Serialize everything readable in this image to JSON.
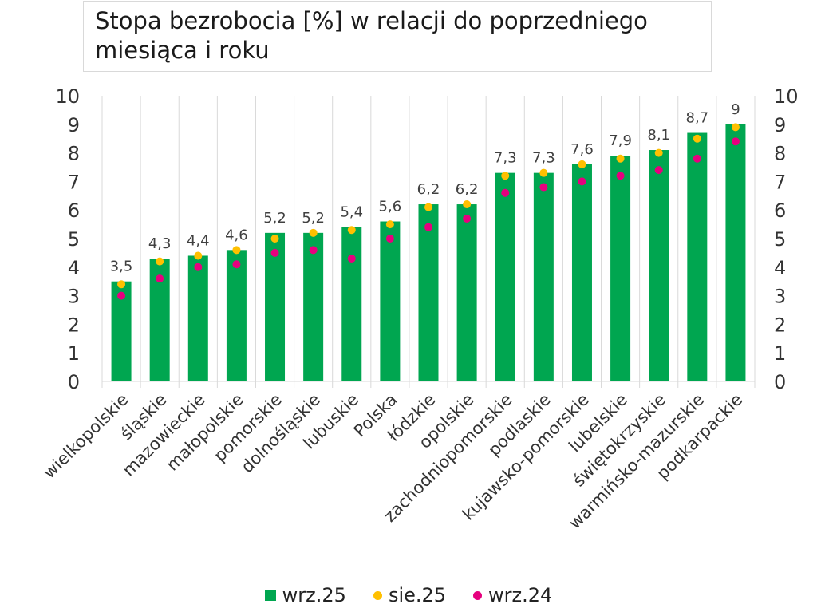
{
  "title": "Stopa bezrobocia [%] w relacji do poprzedniego miesiąca i roku",
  "colors": {
    "bar": "#00a650",
    "dot_sie25": "#ffc000",
    "dot_wrz24": "#e6007e",
    "grid": "#d9d9d9"
  },
  "chart_data": {
    "type": "bar",
    "title": "Stopa bezrobocia [%] w relacji do poprzedniego miesiąca i roku",
    "categories": [
      "wielkopolskie",
      "śląskie",
      "mazowieckie",
      "małopolskie",
      "pomorskie",
      "dolnośląskie",
      "lubuskie",
      "Polska",
      "łódzkie",
      "opolskie",
      "zachodniopomorskie",
      "podlaskie",
      "kujawsko-pomorskie",
      "lubelskie",
      "świętokrzyskie",
      "warmińsko-mazurskie",
      "podkarpackie"
    ],
    "series": [
      {
        "name": "wrz.25",
        "kind": "bar",
        "values": [
          3.5,
          4.3,
          4.4,
          4.6,
          5.2,
          5.2,
          5.4,
          5.6,
          6.2,
          6.2,
          7.3,
          7.3,
          7.6,
          7.9,
          8.1,
          8.7,
          9.0
        ],
        "labels": [
          "3,5",
          "4,3",
          "4,4",
          "4,6",
          "5,2",
          "5,2",
          "5,4",
          "5,6",
          "6,2",
          "6,2",
          "7,3",
          "7,3",
          "7,6",
          "7,9",
          "8,1",
          "8,7",
          "9"
        ]
      },
      {
        "name": "sie.25",
        "kind": "dot",
        "values": [
          3.4,
          4.2,
          4.4,
          4.6,
          5.0,
          5.2,
          5.3,
          5.5,
          6.1,
          6.2,
          7.2,
          7.3,
          7.6,
          7.8,
          8.0,
          8.5,
          8.9
        ]
      },
      {
        "name": "wrz.24",
        "kind": "dot",
        "values": [
          3.0,
          3.6,
          4.0,
          4.1,
          4.5,
          4.6,
          4.3,
          5.0,
          5.4,
          5.7,
          6.6,
          6.8,
          7.0,
          7.2,
          7.4,
          7.8,
          8.4
        ]
      }
    ],
    "ylim": [
      0,
      10
    ],
    "yticks": [
      "0",
      "1",
      "2",
      "3",
      "4",
      "5",
      "6",
      "7",
      "8",
      "9",
      "10"
    ],
    "y2ticks": [
      "0",
      "1",
      "2",
      "3",
      "4",
      "5",
      "6",
      "7",
      "8",
      "9",
      "10"
    ],
    "grid": "vertical",
    "legend_position": "bottom"
  }
}
